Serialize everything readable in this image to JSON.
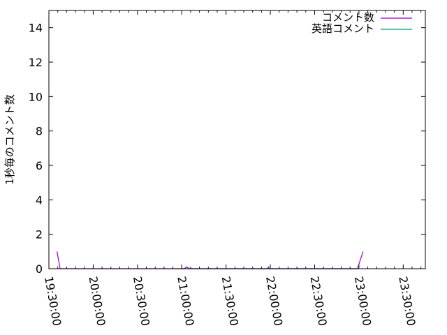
{
  "chart_data": {
    "type": "line",
    "title": "",
    "xlabel": "",
    "ylabel": "1秒毎のコメント数",
    "xlim": [
      "19:30:00",
      "23:45:00"
    ],
    "ylim": [
      0,
      15
    ],
    "xticks": [
      "19:30:00",
      "20:00:00",
      "20:30:00",
      "21:00:00",
      "21:30:00",
      "22:00:00",
      "22:30:00",
      "23:00:00",
      "23:30:00"
    ],
    "yticks": [
      "0",
      "2",
      "4",
      "6",
      "8",
      "10",
      "12",
      "14"
    ],
    "grid": false,
    "legend": "top-right",
    "series": [
      {
        "name": "コメント数",
        "color": "#9400d3",
        "points": [
          [
            "19:35:30",
            1
          ],
          [
            "19:37:35",
            0
          ],
          [
            "21:01:30",
            0
          ],
          [
            "21:03:25",
            0.1
          ],
          [
            "21:05:00",
            0
          ],
          [
            "21:58:00",
            0
          ],
          [
            "21:58:40",
            0.1
          ],
          [
            "21:59:20",
            0
          ],
          [
            "22:59:00",
            0
          ],
          [
            "23:02:50",
            1
          ]
        ]
      },
      {
        "name": "英語コメント",
        "color": "#009e73",
        "points": [
          [
            "21:00:00",
            0
          ],
          [
            "22:59:00",
            0
          ]
        ]
      }
    ]
  }
}
